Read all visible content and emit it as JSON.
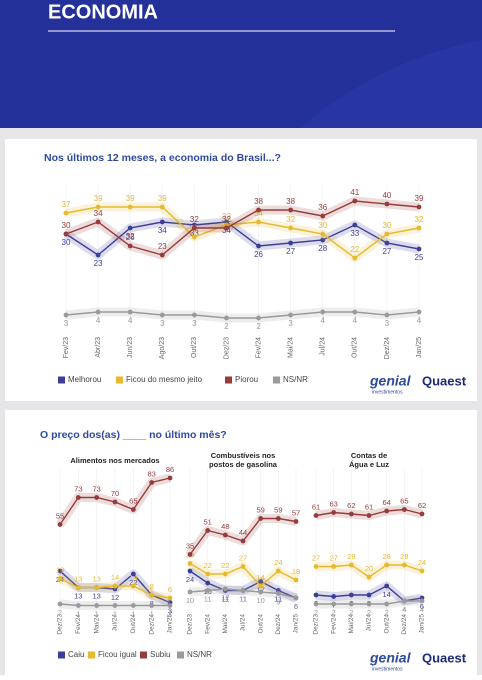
{
  "header": {
    "title": "ECONOMIA"
  },
  "brand": {
    "name": "genial",
    "sub": "investimentos",
    "partner": "Quaest"
  },
  "section_2": {
    "title": "O preço dos(as) ____ no último mês?"
  },
  "chart_data": [
    {
      "type": "line",
      "title": "Nos últimos 12 meses, a economia do Brasil...?",
      "categories": [
        "Fev/23",
        "Abr/23",
        "Jun/23",
        "Ago/23",
        "Out/23",
        "Dez/23",
        "Fev/24",
        "Mai/24",
        "Jul/24",
        "Out/24",
        "Dez/24",
        "Jan/25"
      ],
      "ylim": [
        0,
        45
      ],
      "series": [
        {
          "name": "Melhorou",
          "color": "#3d3f97",
          "values": [
            30,
            23,
            32,
            34,
            33,
            34,
            26,
            27,
            28,
            33,
            27,
            25
          ]
        },
        {
          "name": "Ficou do mesmo jeito",
          "color": "#e6b92f",
          "values": [
            37,
            39,
            39,
            39,
            29,
            33,
            34,
            32,
            30,
            22,
            30,
            32
          ]
        },
        {
          "name": "Piorou",
          "color": "#963c3c",
          "values": [
            30,
            34,
            26,
            23,
            32,
            32,
            38,
            38,
            36,
            41,
            40,
            39
          ]
        },
        {
          "name": "NS/NR",
          "color": "#9a9a9a",
          "values": [
            3,
            4,
            4,
            3,
            3,
            2,
            2,
            3,
            4,
            4,
            3,
            4
          ]
        }
      ]
    },
    {
      "type": "line",
      "title": [
        "Alimentos nos mercados"
      ],
      "categories": [
        "Dez/23",
        "Fev/24",
        "Mai/24",
        "Jul/24",
        "Out/24",
        "Dez/24",
        "Jan/25"
      ],
      "ylim": [
        0,
        90
      ],
      "series": [
        {
          "name": "Caiu",
          "color": "#3d3f97",
          "values": [
            24,
            13,
            13,
            12,
            22,
            8,
            3
          ]
        },
        {
          "name": "Ficou igual",
          "color": "#e6b92f",
          "values": [
            19,
            13,
            13,
            14,
            14,
            8,
            6
          ]
        },
        {
          "name": "Subiu",
          "color": "#963c3c",
          "values": [
            55,
            73,
            73,
            70,
            65,
            83,
            86
          ]
        },
        {
          "name": "NS/NR",
          "color": "#9a9a9a",
          "values": [
            2,
            1,
            1,
            1,
            1,
            1,
            1
          ]
        }
      ]
    },
    {
      "type": "line",
      "title": [
        "Combustíveis nos",
        "postos de gasolina"
      ],
      "categories": [
        "Dez/23",
        "Fev/24",
        "Mai/24",
        "Jul/24",
        "Out/24",
        "Dez/24",
        "Jan/25"
      ],
      "ylim": [
        0,
        90
      ],
      "series": [
        {
          "name": "Caiu",
          "color": "#3d3f97",
          "values": [
            24,
            16,
            11,
            11,
            17,
            11,
            6
          ]
        },
        {
          "name": "Ficou igual",
          "color": "#e6b92f",
          "values": [
            29,
            22,
            22,
            27,
            14,
            24,
            18
          ]
        },
        {
          "name": "Subiu",
          "color": "#963c3c",
          "values": [
            35,
            51,
            48,
            44,
            59,
            59,
            57
          ]
        },
        {
          "name": "NS/NR",
          "color": "#9a9a9a",
          "values": [
            10,
            11,
            12,
            11,
            10,
            9,
            6
          ]
        }
      ]
    },
    {
      "type": "line",
      "title": [
        "Contas de",
        "Água e Luz"
      ],
      "categories": [
        "Dez/23",
        "Fev/24",
        "Mai/24",
        "Jul/24",
        "Out/24",
        "Dez/24",
        "Jan/25"
      ],
      "ylim": [
        0,
        90
      ],
      "series": [
        {
          "name": "Caiu",
          "color": "#3d3f97",
          "values": [
            8,
            7,
            8,
            8,
            14,
            4,
            6
          ]
        },
        {
          "name": "Ficou igual",
          "color": "#e6b92f",
          "values": [
            27,
            27,
            28,
            20,
            28,
            28,
            24
          ]
        },
        {
          "name": "Subiu",
          "color": "#963c3c",
          "values": [
            61,
            63,
            62,
            61,
            64,
            65,
            62
          ]
        },
        {
          "name": "NS/NR",
          "color": "#9a9a9a",
          "values": [
            2,
            2,
            2,
            2,
            2,
            4,
            4
          ]
        }
      ]
    }
  ]
}
